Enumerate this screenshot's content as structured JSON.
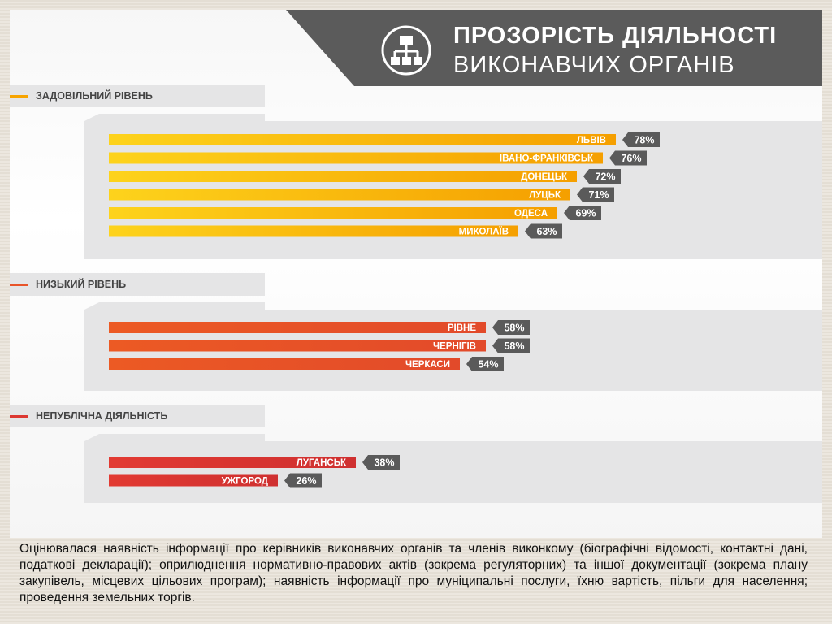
{
  "header": {
    "title_line1": "ПРОЗОРІСТЬ ДІЯЛЬНОСТІ",
    "title_line2": "ВИКОНАВЧИХ ОРГАНІВ",
    "icon": "hierarchy-network-icon"
  },
  "colors": {
    "header_bg": "#5b5b5b",
    "label_box": "#5a5a5a",
    "level_satisfactory": "#f7a400",
    "level_low": "#e8542a",
    "level_nonpublic": "#dc3832"
  },
  "chart_data": {
    "type": "bar",
    "orientation": "horizontal",
    "value_unit": "%",
    "xlim": [
      0,
      100
    ],
    "groups": [
      {
        "label": "ЗАДОВІЛЬНИЙ РІВЕНЬ",
        "color": "#f7a400",
        "categories": [
          "ЛЬВІВ",
          "ІВАНО-ФРАНКІВСЬК",
          "ДОНЕЦЬК",
          "ЛУЦЬК",
          "ОДЕСА",
          "МИКОЛАЇВ"
        ],
        "values": [
          78,
          76,
          72,
          71,
          69,
          63
        ],
        "value_labels": [
          "78%",
          "76%",
          "72%",
          "71%",
          "69%",
          "63%"
        ]
      },
      {
        "label": "НИЗЬКИЙ РІВЕНЬ",
        "color": "#e8542a",
        "categories": [
          "РІВНЕ",
          "ЧЕРНІГІВ",
          "ЧЕРКАСИ"
        ],
        "values": [
          58,
          58,
          54
        ],
        "value_labels": [
          "58%",
          "58%",
          "54%"
        ]
      },
      {
        "label": "НЕПУБЛІЧНА ДІЯЛЬНІСТЬ",
        "color": "#dc3832",
        "categories": [
          "ЛУГАНСЬК",
          "УЖГОРОД"
        ],
        "values": [
          38,
          26
        ],
        "value_labels": [
          "38%",
          "26%"
        ]
      }
    ]
  },
  "description": "Оцінювалася наявність інформації про керівників виконавчих органів та членів виконкому (біографічні відомості, контактні дані, податкові декларації); оприлюднення нормативно-правових актів (зокрема регуляторних) та іншої документації (зокрема плану закупівель, місцевих цільових програм); наявність інформації про муніципальні послуги, їхню вартість, пільги для населення; проведення земельних торгів."
}
